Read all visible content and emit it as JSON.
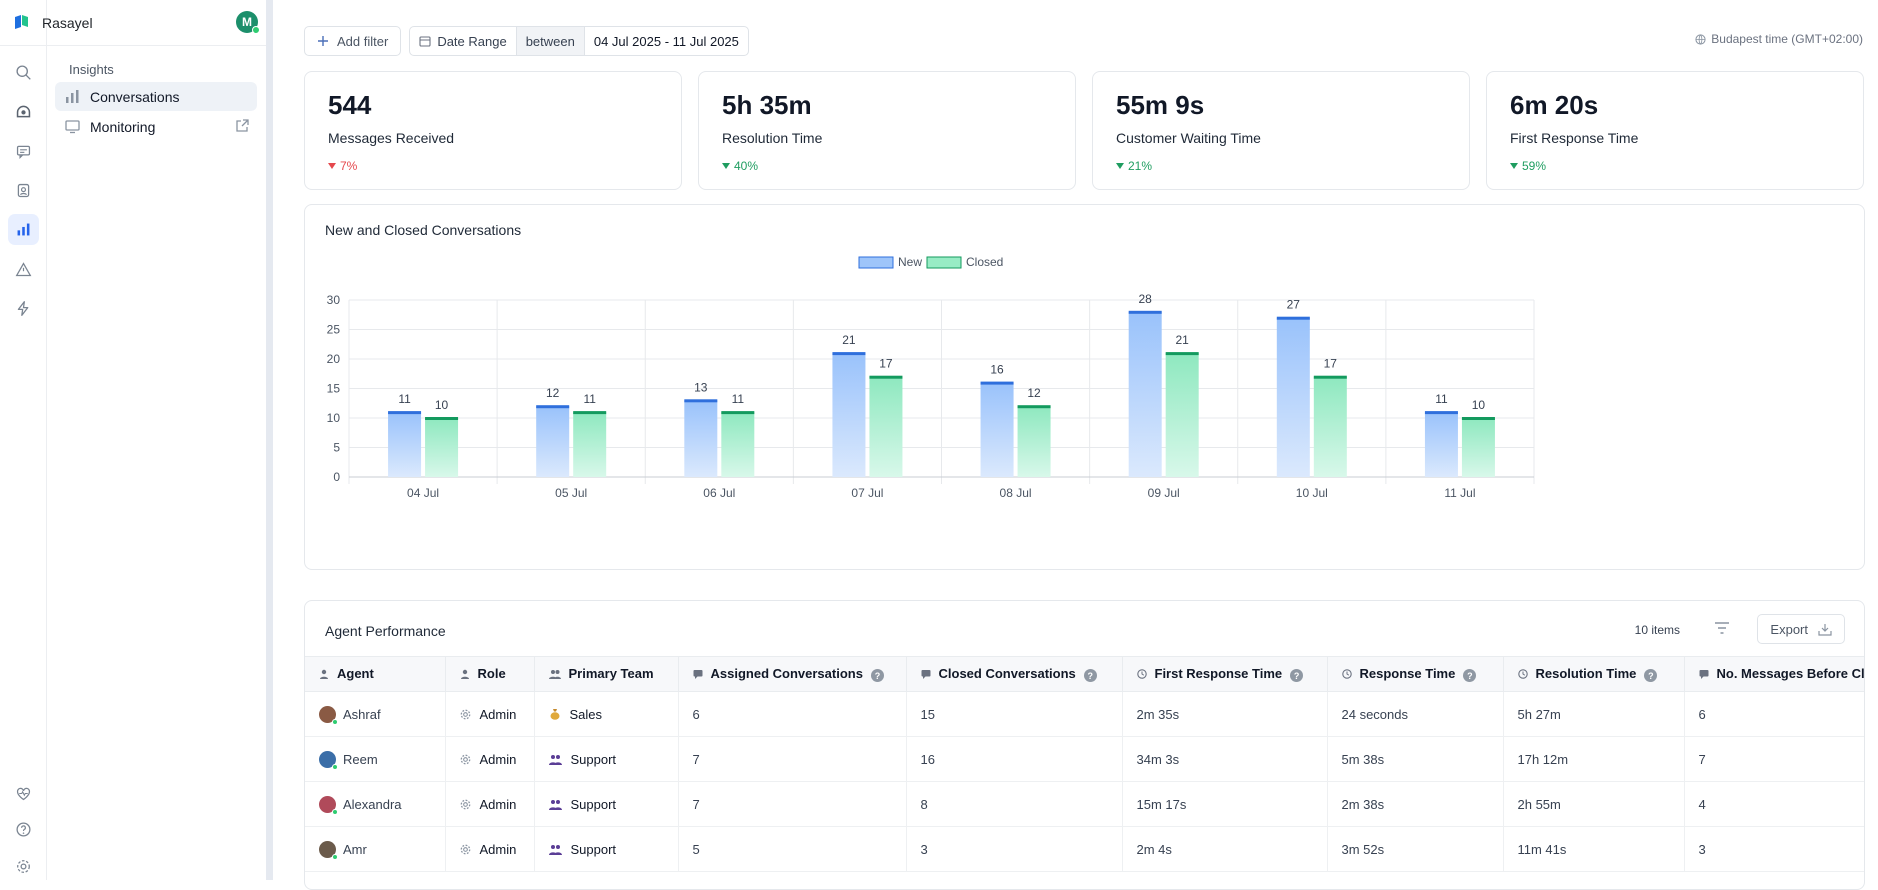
{
  "brand": {
    "name": "Rasayel",
    "avatar_initial": "M"
  },
  "nav": {
    "section": "Insights",
    "items": [
      {
        "label": "Conversations"
      },
      {
        "label": "Monitoring"
      }
    ]
  },
  "rail_icons": [
    "search-icon",
    "inbox-icon",
    "chat-icon",
    "contacts-icon",
    "insights-icon",
    "alert-icon",
    "bolt-icon",
    "heart-icon",
    "help-icon",
    "settings-icon"
  ],
  "filters": {
    "add_filter": "Add filter",
    "date_range_label": "Date Range",
    "operator": "between",
    "value": "04 Jul 2025 - 11 Jul 2025",
    "timezone": "Budapest time (GMT+02:00)"
  },
  "kpis": [
    {
      "value": "544",
      "label": "Messages Received",
      "delta": "7%",
      "dir": "down"
    },
    {
      "value": "5h 35m",
      "label": "Resolution Time",
      "delta": "40%",
      "dir": "up"
    },
    {
      "value": "55m 9s",
      "label": "Customer Waiting Time",
      "delta": "21%",
      "dir": "up"
    },
    {
      "value": "6m 20s",
      "label": "First Response Time",
      "delta": "59%",
      "dir": "up"
    }
  ],
  "chart": {
    "title": "New and Closed Conversations"
  },
  "chart_data": {
    "type": "bar",
    "categories": [
      "04 Jul",
      "05 Jul",
      "06 Jul",
      "07 Jul",
      "08 Jul",
      "09 Jul",
      "10 Jul",
      "11 Jul"
    ],
    "series": [
      {
        "name": "New",
        "values": [
          11,
          12,
          13,
          21,
          16,
          28,
          27,
          11
        ],
        "color": "#9ec5fa",
        "line": "#2f6fdc"
      },
      {
        "name": "Closed",
        "values": [
          10,
          11,
          11,
          17,
          12,
          21,
          17,
          10
        ],
        "color": "#98ecc5",
        "line": "#139a5e"
      }
    ],
    "ylim": [
      0,
      30
    ],
    "yticks": [
      0,
      5,
      10,
      15,
      20,
      25,
      30
    ],
    "grid": true,
    "legend": "top-center"
  },
  "table": {
    "title": "Agent Performance",
    "count": "10 items",
    "export": "Export",
    "columns": [
      "Agent",
      "Role",
      "Primary Team",
      "Assigned Conversations",
      "Closed Conversations",
      "First Response Time",
      "Response Time",
      "Resolution Time",
      "No. Messages Before Closure"
    ],
    "rows": [
      {
        "agent": "Ashraf",
        "role": "Admin",
        "team": "Sales",
        "assigned": "6",
        "closed": "15",
        "frt": "2m 35s",
        "rt": "24 seconds",
        "res": "5h 27m",
        "msgs": "6"
      },
      {
        "agent": "Reem",
        "role": "Admin",
        "team": "Support",
        "assigned": "7",
        "closed": "16",
        "frt": "34m 3s",
        "rt": "5m 38s",
        "res": "17h 12m",
        "msgs": "7"
      },
      {
        "agent": "Alexandra",
        "role": "Admin",
        "team": "Support",
        "assigned": "7",
        "closed": "8",
        "frt": "15m 17s",
        "rt": "2m 38s",
        "res": "2h 55m",
        "msgs": "4"
      },
      {
        "agent": "Amr",
        "role": "Admin",
        "team": "Support",
        "assigned": "5",
        "closed": "3",
        "frt": "2m 4s",
        "rt": "3m 52s",
        "res": "11m 41s",
        "msgs": "3"
      }
    ]
  }
}
